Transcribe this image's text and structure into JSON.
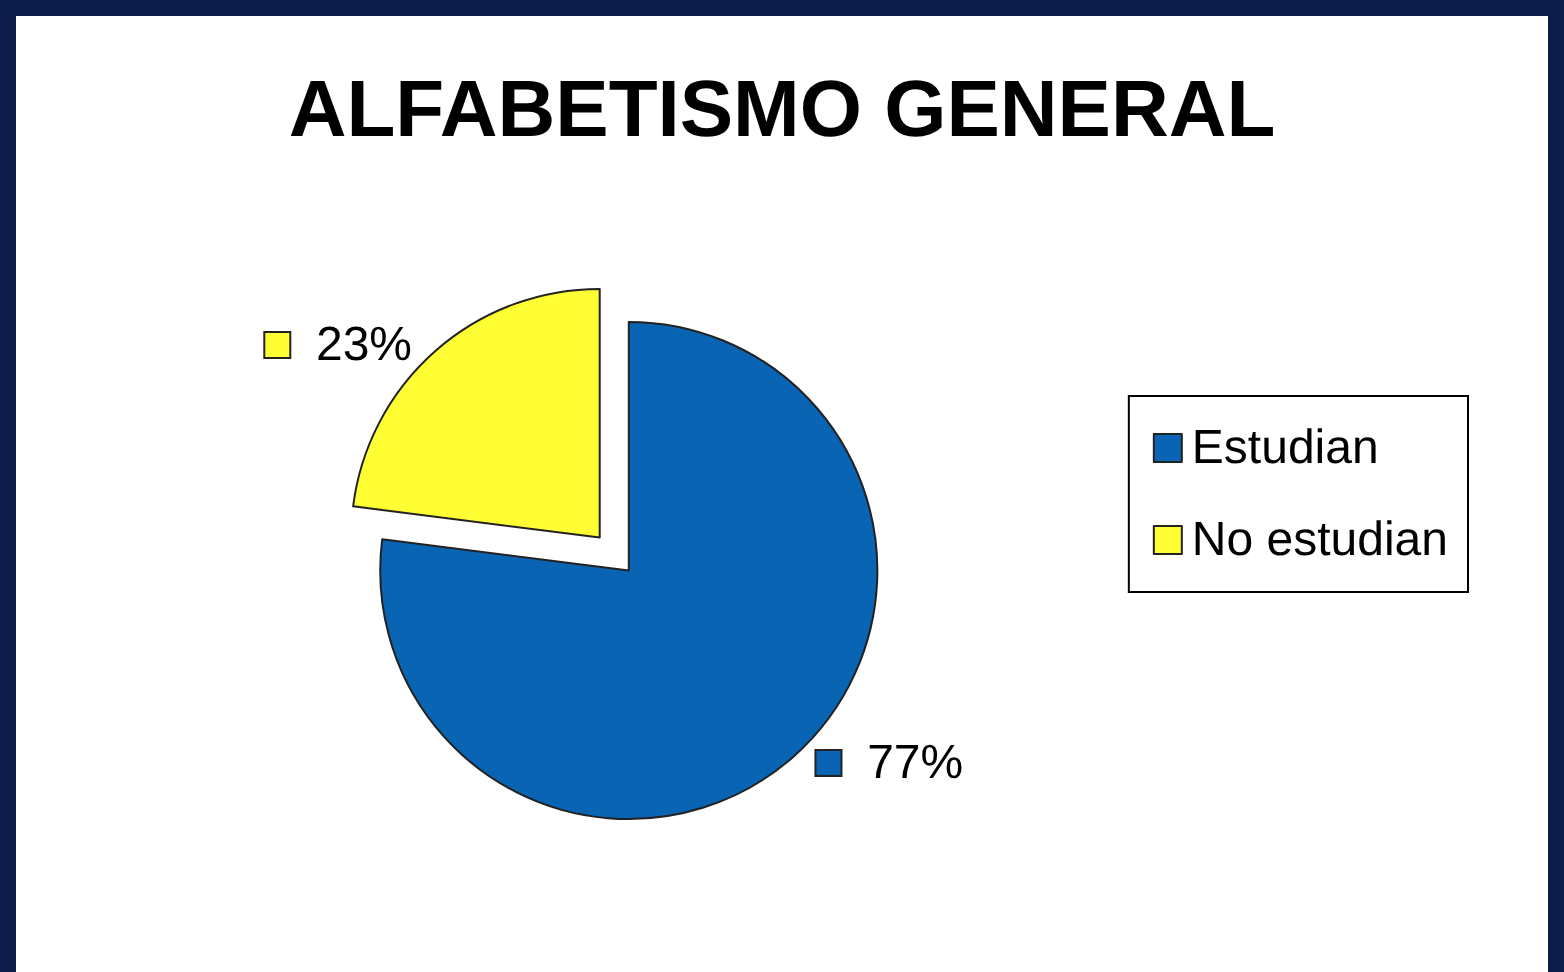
{
  "chart_data": {
    "type": "pie",
    "title": "ALFABETISMO GENERAL",
    "categories": [
      "Estudian",
      "No estudian"
    ],
    "values": [
      77,
      23
    ],
    "colors": [
      "#0a64b4",
      "#ffff33"
    ],
    "value_labels": [
      "77%",
      "23%"
    ],
    "legend": "right"
  }
}
